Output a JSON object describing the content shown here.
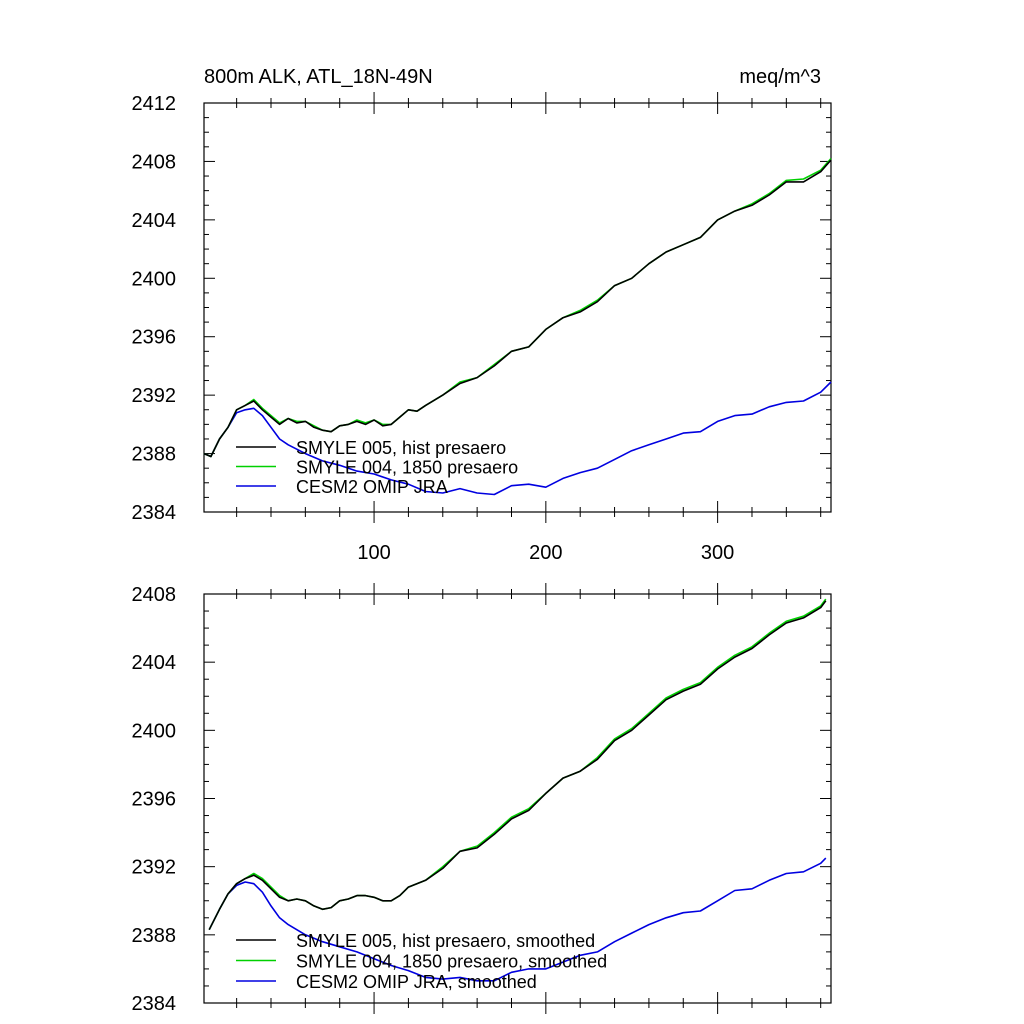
{
  "chart_data": [
    {
      "type": "line",
      "title": "800m ALK, ATL_18N-49N",
      "units": "meq/m^3",
      "xlim": [
        1,
        366
      ],
      "ylim": [
        2384,
        2412
      ],
      "xticks": [
        100,
        200,
        300
      ],
      "yticks": [
        2384,
        2388,
        2392,
        2396,
        2400,
        2404,
        2408,
        2412
      ],
      "legend_placement": "bottom-left",
      "series": [
        {
          "name": "SMYLE 005, hist presaero",
          "color": "#000000",
          "x": [
            1,
            5,
            10,
            15,
            20,
            25,
            30,
            35,
            40,
            45,
            50,
            55,
            60,
            65,
            70,
            75,
            80,
            85,
            90,
            95,
            100,
            105,
            110,
            115,
            120,
            125,
            130,
            140,
            150,
            160,
            170,
            180,
            190,
            200,
            210,
            220,
            230,
            240,
            250,
            260,
            270,
            280,
            290,
            300,
            310,
            320,
            330,
            340,
            350,
            360,
            366
          ],
          "y": [
            2388.0,
            2387.8,
            2389.0,
            2389.8,
            2391.0,
            2391.3,
            2391.6,
            2391.0,
            2390.5,
            2390.0,
            2390.4,
            2390.1,
            2390.2,
            2389.8,
            2389.6,
            2389.5,
            2389.9,
            2390.0,
            2390.2,
            2390.0,
            2390.3,
            2389.9,
            2390.0,
            2390.5,
            2391.0,
            2390.9,
            2391.3,
            2392.0,
            2392.8,
            2393.2,
            2394.0,
            2395.0,
            2395.3,
            2396.5,
            2397.3,
            2397.7,
            2398.4,
            2399.5,
            2400.0,
            2401.0,
            2401.8,
            2402.3,
            2402.8,
            2404.0,
            2404.6,
            2405.0,
            2405.7,
            2406.6,
            2406.6,
            2407.3,
            2408.1
          ]
        },
        {
          "name": "SMYLE 004, 1850 presaero",
          "color": "#00d000",
          "x": [
            1,
            5,
            10,
            15,
            20,
            25,
            30,
            35,
            40,
            45,
            50,
            55,
            60,
            65,
            70,
            75,
            80,
            85,
            90,
            95,
            100,
            105,
            110,
            115,
            120,
            125,
            130,
            140,
            150,
            160,
            170,
            180,
            190,
            200,
            210,
            220,
            230,
            240,
            250,
            260,
            270,
            280,
            290,
            300,
            310,
            320,
            330,
            340,
            350,
            360,
            366
          ],
          "y": [
            2388.0,
            2387.8,
            2389.0,
            2389.8,
            2391.0,
            2391.3,
            2391.7,
            2391.1,
            2390.6,
            2390.1,
            2390.4,
            2390.2,
            2390.2,
            2389.9,
            2389.6,
            2389.5,
            2389.9,
            2390.0,
            2390.3,
            2390.1,
            2390.3,
            2390.0,
            2390.0,
            2390.5,
            2391.0,
            2390.9,
            2391.3,
            2392.0,
            2392.9,
            2393.2,
            2394.1,
            2395.0,
            2395.3,
            2396.5,
            2397.3,
            2397.8,
            2398.5,
            2399.5,
            2400.0,
            2401.0,
            2401.8,
            2402.3,
            2402.8,
            2404.0,
            2404.6,
            2405.1,
            2405.8,
            2406.7,
            2406.8,
            2407.4,
            2408.2
          ]
        },
        {
          "name": "CESM2 OMIP JRA",
          "color": "#0000e0",
          "x": [
            1,
            5,
            10,
            15,
            20,
            25,
            30,
            35,
            40,
            45,
            50,
            55,
            60,
            70,
            80,
            90,
            100,
            110,
            120,
            130,
            140,
            150,
            160,
            170,
            180,
            190,
            200,
            210,
            220,
            230,
            240,
            250,
            260,
            270,
            280,
            290,
            300,
            310,
            320,
            330,
            340,
            350,
            360,
            366
          ],
          "y": [
            2388.0,
            2387.8,
            2389.0,
            2389.8,
            2390.8,
            2391.0,
            2391.1,
            2390.6,
            2389.8,
            2389.0,
            2388.6,
            2388.3,
            2388.0,
            2387.5,
            2387.2,
            2386.8,
            2386.6,
            2386.2,
            2385.9,
            2385.4,
            2385.3,
            2385.6,
            2385.3,
            2385.2,
            2385.8,
            2385.9,
            2385.7,
            2386.3,
            2386.7,
            2387.0,
            2387.6,
            2388.2,
            2388.6,
            2389.0,
            2389.4,
            2389.5,
            2390.2,
            2390.6,
            2390.7,
            2391.2,
            2391.5,
            2391.6,
            2392.2,
            2392.9
          ]
        }
      ]
    },
    {
      "type": "line",
      "xlim": [
        1,
        366
      ],
      "ylim": [
        2384,
        2408
      ],
      "xticks": [
        100,
        200,
        300
      ],
      "yticks": [
        2384,
        2388,
        2392,
        2396,
        2400,
        2404,
        2408
      ],
      "legend_placement": "bottom-left",
      "series": [
        {
          "name": "SMYLE 005, hist presaero, smoothed",
          "color": "#000000",
          "x": [
            4,
            10,
            15,
            20,
            25,
            30,
            35,
            40,
            45,
            50,
            55,
            60,
            65,
            70,
            75,
            80,
            85,
            90,
            95,
            100,
            105,
            110,
            115,
            120,
            130,
            140,
            150,
            160,
            170,
            180,
            190,
            200,
            210,
            220,
            230,
            240,
            250,
            260,
            270,
            280,
            290,
            300,
            310,
            320,
            330,
            340,
            350,
            360,
            363
          ],
          "y": [
            2388.3,
            2389.5,
            2390.4,
            2391.0,
            2391.3,
            2391.5,
            2391.2,
            2390.7,
            2390.2,
            2390.0,
            2390.1,
            2390.0,
            2389.7,
            2389.5,
            2389.6,
            2390.0,
            2390.1,
            2390.3,
            2390.3,
            2390.2,
            2390.0,
            2390.0,
            2390.3,
            2390.8,
            2391.2,
            2391.9,
            2392.9,
            2393.1,
            2393.9,
            2394.8,
            2395.3,
            2396.3,
            2397.2,
            2397.6,
            2398.3,
            2399.4,
            2400.0,
            2400.9,
            2401.8,
            2402.3,
            2402.7,
            2403.6,
            2404.3,
            2404.8,
            2405.6,
            2406.3,
            2406.6,
            2407.2,
            2407.6
          ]
        },
        {
          "name": "SMYLE 004, 1850 presaero, smoothed",
          "color": "#00d000",
          "x": [
            4,
            10,
            15,
            20,
            25,
            30,
            35,
            40,
            45,
            50,
            55,
            60,
            65,
            70,
            75,
            80,
            85,
            90,
            95,
            100,
            105,
            110,
            115,
            120,
            130,
            140,
            150,
            160,
            170,
            180,
            190,
            200,
            210,
            220,
            230,
            240,
            250,
            260,
            270,
            280,
            290,
            300,
            310,
            320,
            330,
            340,
            350,
            360,
            363
          ],
          "y": [
            2388.3,
            2389.5,
            2390.4,
            2391.0,
            2391.3,
            2391.6,
            2391.3,
            2390.8,
            2390.3,
            2390.0,
            2390.1,
            2390.0,
            2389.7,
            2389.5,
            2389.6,
            2390.0,
            2390.1,
            2390.3,
            2390.3,
            2390.2,
            2390.0,
            2390.0,
            2390.3,
            2390.8,
            2391.2,
            2392.0,
            2392.9,
            2393.2,
            2394.0,
            2394.9,
            2395.4,
            2396.3,
            2397.2,
            2397.6,
            2398.4,
            2399.5,
            2400.1,
            2401.0,
            2401.9,
            2402.4,
            2402.8,
            2403.7,
            2404.4,
            2404.9,
            2405.7,
            2406.4,
            2406.7,
            2407.3,
            2407.7
          ]
        },
        {
          "name": "CESM2 OMIP JRA, smoothed",
          "color": "#0000e0",
          "x": [
            4,
            10,
            15,
            20,
            25,
            30,
            35,
            40,
            45,
            50,
            55,
            60,
            70,
            80,
            90,
            100,
            110,
            120,
            130,
            140,
            150,
            160,
            170,
            180,
            190,
            200,
            210,
            220,
            230,
            240,
            250,
            260,
            270,
            280,
            290,
            300,
            310,
            320,
            330,
            340,
            350,
            360,
            363
          ],
          "y": [
            2388.3,
            2389.5,
            2390.4,
            2390.9,
            2391.1,
            2391.0,
            2390.5,
            2389.7,
            2389.0,
            2388.6,
            2388.3,
            2388.0,
            2387.6,
            2387.3,
            2387.0,
            2386.6,
            2386.2,
            2385.9,
            2385.5,
            2385.4,
            2385.5,
            2385.3,
            2385.3,
            2385.8,
            2386.0,
            2386.0,
            2386.4,
            2386.8,
            2387.0,
            2387.6,
            2388.1,
            2388.6,
            2389.0,
            2389.3,
            2389.4,
            2390.0,
            2390.6,
            2390.7,
            2391.2,
            2391.6,
            2391.7,
            2392.2,
            2392.5
          ]
        }
      ]
    }
  ]
}
